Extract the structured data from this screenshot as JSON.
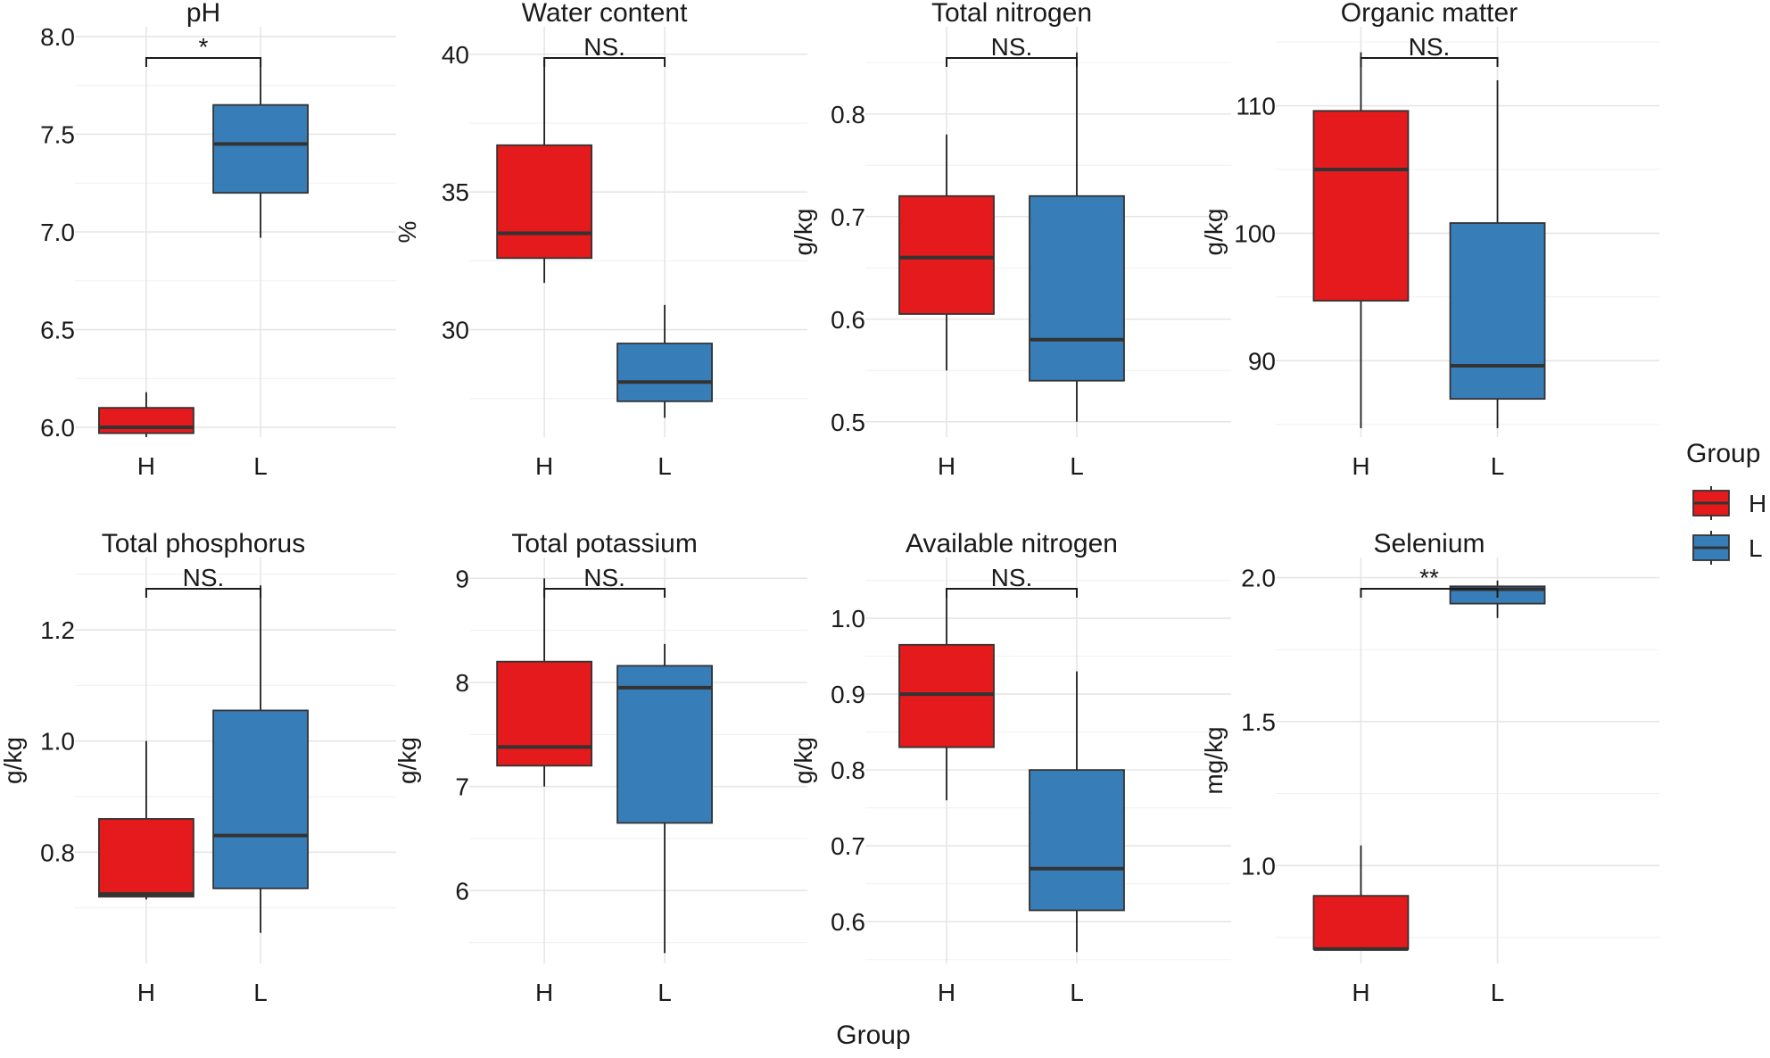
{
  "figure": {
    "xlabel": "Group",
    "legend": {
      "title": "Group",
      "position": "right",
      "entries": [
        {
          "label": "H",
          "color": "#E41A1C"
        },
        {
          "label": "L",
          "color": "#377EB8"
        }
      ]
    }
  },
  "chart_data": [
    {
      "type": "box",
      "title": "pH",
      "ylabel": "",
      "categories": [
        "H",
        "L"
      ],
      "ylim": [
        5.95,
        8.05
      ],
      "yticks": [
        6.0,
        6.5,
        7.0,
        7.5,
        8.0
      ],
      "tick_labels": [
        "6.0",
        "6.5",
        "7.0",
        "7.5",
        "8.0"
      ],
      "significance": "*",
      "series": [
        {
          "name": "H",
          "min": 5.95,
          "q1": 5.97,
          "median": 6.0,
          "q3": 6.1,
          "max": 6.18
        },
        {
          "name": "L",
          "min": 6.97,
          "q1": 7.2,
          "median": 7.45,
          "q3": 7.65,
          "max": 7.85
        }
      ]
    },
    {
      "type": "box",
      "title": "Water content",
      "ylabel": "%",
      "categories": [
        "H",
        "L"
      ],
      "ylim": [
        26.1,
        41.0
      ],
      "yticks": [
        30,
        35,
        40
      ],
      "tick_labels": [
        "30",
        "35",
        "40"
      ],
      "significance": "NS.",
      "series": [
        {
          "name": "H",
          "min": 31.7,
          "q1": 32.6,
          "median": 33.5,
          "q3": 36.7,
          "max": 39.8
        },
        {
          "name": "L",
          "min": 26.8,
          "q1": 27.4,
          "median": 28.1,
          "q3": 29.5,
          "max": 30.9
        }
      ]
    },
    {
      "type": "box",
      "title": "Total nitrogen",
      "ylabel": "g/kg",
      "categories": [
        "H",
        "L"
      ],
      "ylim": [
        0.485,
        0.885
      ],
      "yticks": [
        0.5,
        0.6,
        0.7,
        0.8
      ],
      "tick_labels": [
        "0.5",
        "0.6",
        "0.7",
        "0.8"
      ],
      "significance": "NS.",
      "series": [
        {
          "name": "H",
          "min": 0.55,
          "q1": 0.605,
          "median": 0.66,
          "q3": 0.72,
          "max": 0.78
        },
        {
          "name": "L",
          "min": 0.5,
          "q1": 0.54,
          "median": 0.58,
          "q3": 0.72,
          "max": 0.86
        }
      ]
    },
    {
      "type": "box",
      "title": "Organic matter",
      "ylabel": "g/kg",
      "categories": [
        "H",
        "L"
      ],
      "ylim": [
        84.0,
        116.2
      ],
      "yticks": [
        90,
        100,
        110
      ],
      "tick_labels": [
        "90",
        "100",
        "110"
      ],
      "significance": "NS.",
      "series": [
        {
          "name": "H",
          "min": 84.7,
          "q1": 94.7,
          "median": 105.0,
          "q3": 109.6,
          "max": 114.2
        },
        {
          "name": "L",
          "min": 84.7,
          "q1": 87.0,
          "median": 89.6,
          "q3": 100.8,
          "max": 112.0
        }
      ]
    },
    {
      "type": "box",
      "title": "Total phosphorus",
      "ylabel": "g/kg",
      "categories": [
        "H",
        "L"
      ],
      "ylim": [
        0.6,
        1.33
      ],
      "yticks": [
        0.8,
        1.0,
        1.2
      ],
      "tick_labels": [
        "0.8",
        "1.0",
        "1.2"
      ],
      "significance": "NS.",
      "series": [
        {
          "name": "H",
          "min": 0.715,
          "q1": 0.72,
          "median": 0.725,
          "q3": 0.86,
          "max": 1.0
        },
        {
          "name": "L",
          "min": 0.655,
          "q1": 0.735,
          "median": 0.83,
          "q3": 1.055,
          "max": 1.28
        }
      ]
    },
    {
      "type": "box",
      "title": "Total potassium",
      "ylabel": "g/kg",
      "categories": [
        "H",
        "L"
      ],
      "ylim": [
        5.3,
        9.2
      ],
      "yticks": [
        6,
        7,
        8,
        9
      ],
      "tick_labels": [
        "6",
        "7",
        "8",
        "9"
      ],
      "significance": "NS.",
      "series": [
        {
          "name": "H",
          "min": 7.0,
          "q1": 7.2,
          "median": 7.38,
          "q3": 8.2,
          "max": 9.0
        },
        {
          "name": "L",
          "min": 5.4,
          "q1": 6.65,
          "median": 7.95,
          "q3": 8.16,
          "max": 8.37
        }
      ]
    },
    {
      "type": "box",
      "title": "Available nitrogen",
      "ylabel": "g/kg",
      "categories": [
        "H",
        "L"
      ],
      "ylim": [
        0.545,
        1.08
      ],
      "yticks": [
        0.6,
        0.7,
        0.8,
        0.9,
        1.0
      ],
      "tick_labels": [
        "0.6",
        "0.7",
        "0.8",
        "0.9",
        "1.0"
      ],
      "significance": "NS.",
      "series": [
        {
          "name": "H",
          "min": 0.76,
          "q1": 0.83,
          "median": 0.9,
          "q3": 0.965,
          "max": 1.03
        },
        {
          "name": "L",
          "min": 0.56,
          "q1": 0.615,
          "median": 0.67,
          "q3": 0.8,
          "max": 0.93
        }
      ]
    },
    {
      "type": "box",
      "title": "Selenium",
      "ylabel": "mg/kg",
      "categories": [
        "H",
        "L"
      ],
      "ylim": [
        0.66,
        2.07
      ],
      "yticks": [
        1.0,
        1.5,
        2.0
      ],
      "tick_labels": [
        "1.0",
        "1.5",
        "2.0"
      ],
      "significance": "**",
      "series": [
        {
          "name": "H",
          "min": 0.71,
          "q1": 0.71,
          "median": 0.71,
          "q3": 0.895,
          "max": 1.07
        },
        {
          "name": "L",
          "min": 1.86,
          "q1": 1.91,
          "median": 1.96,
          "q3": 1.97,
          "max": 1.99
        }
      ]
    }
  ]
}
